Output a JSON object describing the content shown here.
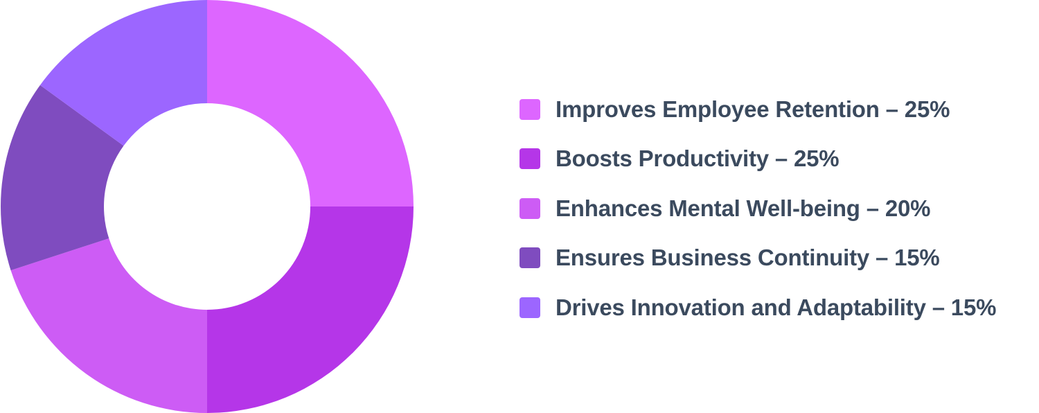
{
  "chart_data": {
    "type": "pie",
    "title": "",
    "donut": true,
    "legend_position": "right",
    "slices": [
      {
        "label": "Improves Employee Retention – 25%",
        "value": 25,
        "color": "#dd66ff"
      },
      {
        "label": "Boosts Productivity – 25%",
        "value": 25,
        "color": "#b536e8"
      },
      {
        "label": "Enhances Mental Well-being – 20%",
        "value": 20,
        "color": "#cd5cf5"
      },
      {
        "label": "Ensures Business Continuity – 15%",
        "value": 15,
        "color": "#7f4cbf"
      },
      {
        "label": "Drives Innovation and Adaptability – 15%",
        "value": 15,
        "color": "#9c66ff"
      }
    ]
  }
}
